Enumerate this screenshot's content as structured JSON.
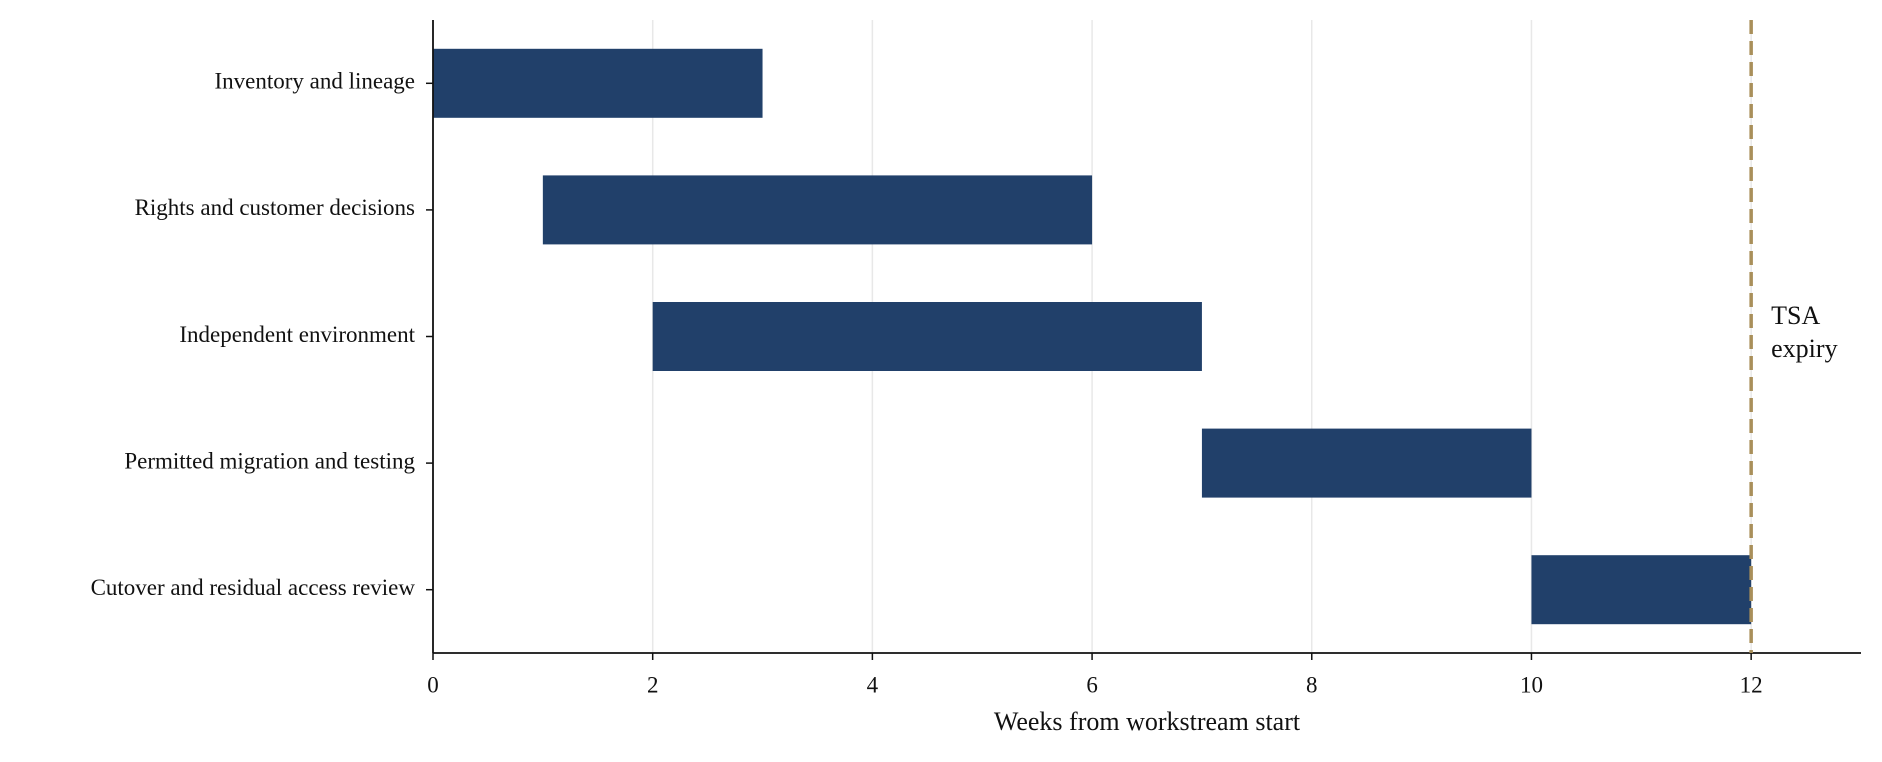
{
  "chart_data": {
    "type": "gantt",
    "categories": [
      "Inventory and lineage",
      "Rights and customer decisions",
      "Independent environment",
      "Permitted migration and testing",
      "Cutover and residual access review"
    ],
    "start": [
      0,
      1,
      2,
      7,
      10
    ],
    "end": [
      3,
      6,
      7,
      10,
      12
    ],
    "color": "#21406a",
    "x_label": "Weeks from workstream start",
    "xlim": [
      0,
      13
    ],
    "xticks": [
      0,
      2,
      4,
      6,
      8,
      10,
      12
    ],
    "grid": true,
    "annotation": {
      "x": 12,
      "text": [
        "TSA",
        "expiry"
      ],
      "color": "#a98f5a",
      "text_color": "#7d5f34"
    }
  }
}
